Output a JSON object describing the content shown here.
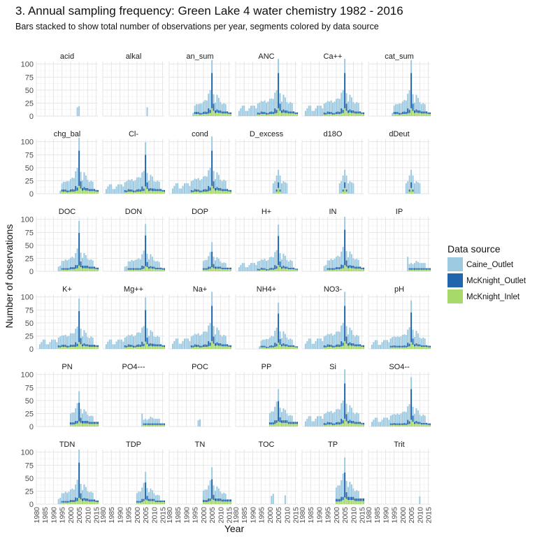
{
  "chart_data": {
    "type": "bar",
    "layout": "facet-grid",
    "stacked": true,
    "title": "3. Annual sampling frequency: Green Lake 4 water chemistry 1982 - 2016",
    "subtitle": "Bars stacked to show total number of observations per year, segments colored by data source",
    "xlabel": "Year",
    "ylabel": "Number of observations",
    "xlim": [
      1980,
      2016
    ],
    "ylim": [
      0,
      105
    ],
    "xticks": [
      1980,
      1985,
      1990,
      1995,
      2000,
      2005,
      2010,
      2015
    ],
    "yticks": [
      0,
      25,
      50,
      75,
      100
    ],
    "grid": true,
    "legend": {
      "title": "Data source",
      "position": "right",
      "entries": [
        {
          "name": "Caine_Outlet",
          "color": "#9ecae1"
        },
        {
          "name": "McKnight_Outlet",
          "color": "#2166ac"
        },
        {
          "name": "McKnight_Inlet",
          "color": "#a6d96a"
        }
      ]
    },
    "panel_columns": 6,
    "profiles": {
      "full": {
        "Caine_Outlet": {
          "1982": 10,
          "1983": 15,
          "1984": 20,
          "1985": 20,
          "1986": 10,
          "1987": 10,
          "1988": 15,
          "1989": 20,
          "1990": 20,
          "1991": 20,
          "1992": 15,
          "1993": 17,
          "1994": 20,
          "1995": 20,
          "1996": 20,
          "1997": 22,
          "1998": 20,
          "1999": 22,
          "2000": 25,
          "2001": 25,
          "2002": 25,
          "2003": 30,
          "2004": 38,
          "2005": 27,
          "2006": 20,
          "2007": 17,
          "2008": 28,
          "2009": 25,
          "2010": 16,
          "2011": 15,
          "2012": 18,
          "2013": 16
        },
        "McKnight_Outlet": {
          "1993": 4,
          "1994": 3,
          "1995": 5,
          "1996": 4,
          "1997": 4,
          "1998": 3,
          "1999": 3,
          "2000": 4,
          "2001": 5,
          "2002": 4,
          "2003": 10,
          "2004": 6,
          "2005": 68,
          "2006": 14,
          "2007": 5,
          "2008": 6,
          "2009": 5,
          "2010": 5,
          "2011": 4,
          "2012": 4,
          "2013": 4,
          "2014": 4,
          "2015": 3,
          "2016": 3
        },
        "McKnight_Inlet": {
          "1993": 3,
          "1994": 3,
          "1995": 4,
          "1996": 4,
          "1997": 4,
          "1998": 3,
          "1999": 3,
          "2000": 4,
          "2001": 4,
          "2002": 4,
          "2003": 5,
          "2004": 6,
          "2005": 15,
          "2006": 10,
          "2007": 6,
          "2008": 7,
          "2009": 6,
          "2010": 6,
          "2011": 5,
          "2012": 5,
          "2013": 5,
          "2014": 5,
          "2015": 4,
          "2016": 4
        }
      },
      "late": {
        "Caine_Outlet": {
          "1994": 6,
          "1995": 12,
          "1996": 15,
          "1997": 15,
          "1998": 18,
          "1999": 18,
          "2000": 20,
          "2001": 22,
          "2002": 22,
          "2003": 28,
          "2004": 38,
          "2005": 25,
          "2006": 18,
          "2007": 15,
          "2008": 28,
          "2009": 24,
          "2010": 16,
          "2011": 14,
          "2012": 16,
          "2013": 14
        },
        "McKnight_Outlet": {
          "1995": 4,
          "1996": 4,
          "1997": 4,
          "1998": 3,
          "1999": 3,
          "2000": 4,
          "2001": 5,
          "2002": 4,
          "2003": 10,
          "2004": 6,
          "2005": 68,
          "2006": 14,
          "2007": 5,
          "2008": 6,
          "2009": 5,
          "2010": 5,
          "2011": 4,
          "2012": 4,
          "2013": 4,
          "2014": 4,
          "2015": 3,
          "2016": 3
        },
        "McKnight_Inlet": {
          "1995": 4,
          "1996": 4,
          "1997": 4,
          "1998": 3,
          "1999": 3,
          "2000": 4,
          "2001": 4,
          "2002": 4,
          "2003": 5,
          "2004": 6,
          "2005": 15,
          "2006": 10,
          "2007": 6,
          "2008": 7,
          "2009": 6,
          "2010": 6,
          "2011": 5,
          "2012": 5,
          "2013": 5,
          "2014": 5,
          "2015": 4,
          "2016": 4
        }
      },
      "nutrient": {
        "Caine_Outlet": {
          "1993": 10,
          "1994": 12,
          "1995": 15,
          "1996": 15,
          "1997": 18,
          "1998": 16,
          "1999": 18,
          "2000": 20,
          "2001": 22,
          "2002": 20,
          "2003": 25,
          "2004": 35,
          "2005": 25,
          "2006": 18,
          "2007": 16,
          "2008": 26,
          "2009": 22,
          "2010": 14,
          "2011": 14,
          "2012": 15,
          "2013": 13
        },
        "McKnight_Outlet": {
          "1995": 3,
          "1996": 3,
          "1997": 3,
          "1998": 3,
          "1999": 3,
          "2000": 4,
          "2001": 4,
          "2002": 4,
          "2003": 8,
          "2004": 6,
          "2005": 68,
          "2006": 12,
          "2007": 5,
          "2008": 5,
          "2009": 5,
          "2010": 5,
          "2011": 4,
          "2012": 4,
          "2013": 4,
          "2014": 4,
          "2015": 3,
          "2016": 3
        },
        "McKnight_Inlet": {
          "1995": 3,
          "1996": 3,
          "1997": 3,
          "1998": 3,
          "1999": 3,
          "2000": 4,
          "2001": 4,
          "2002": 4,
          "2003": 5,
          "2004": 6,
          "2005": 12,
          "2006": 9,
          "2007": 6,
          "2008": 7,
          "2009": 6,
          "2010": 6,
          "2011": 5,
          "2012": 5,
          "2013": 5,
          "2014": 5,
          "2015": 4,
          "2016": 4
        }
      },
      "phos": {
        "Caine_Outlet": {
          "2000": 14,
          "2001": 16,
          "2002": 16,
          "2003": 20,
          "2004": 28,
          "2005": 18,
          "2006": 14,
          "2007": 12,
          "2008": 18,
          "2009": 15,
          "2010": 10,
          "2011": 9,
          "2012": 10,
          "2013": 9
        },
        "McKnight_Outlet": {
          "2000": 3,
          "2001": 3,
          "2002": 3,
          "2003": 5,
          "2004": 4,
          "2005": 30,
          "2006": 8,
          "2007": 4,
          "2008": 4,
          "2009": 4,
          "2010": 4,
          "2011": 3,
          "2012": 3,
          "2013": 3,
          "2014": 3,
          "2015": 3,
          "2016": 3
        },
        "McKnight_Inlet": {
          "2000": 3,
          "2001": 3,
          "2002": 3,
          "2003": 4,
          "2004": 5,
          "2005": 8,
          "2006": 6,
          "2007": 5,
          "2008": 5,
          "2009": 5,
          "2010": 5,
          "2011": 4,
          "2012": 4,
          "2013": 4,
          "2014": 4,
          "2015": 4,
          "2016": 4
        }
      },
      "ip": {
        "Caine_Outlet": {
          "2003": 28,
          "2004": 8,
          "2005": 10,
          "2006": 8,
          "2007": 10,
          "2008": 14,
          "2009": 12,
          "2010": 10,
          "2011": 10,
          "2012": 10,
          "2013": 10
        },
        "McKnight_Outlet": {
          "2004": 3,
          "2005": 3,
          "2006": 3,
          "2007": 3,
          "2008": 3,
          "2009": 3,
          "2010": 3,
          "2011": 3,
          "2012": 3,
          "2013": 3,
          "2014": 3,
          "2015": 3,
          "2016": 3
        },
        "McKnight_Inlet": {
          "2004": 3,
          "2005": 3,
          "2006": 3,
          "2007": 3,
          "2008": 3,
          "2009": 3,
          "2010": 3,
          "2011": 3,
          "2012": 3,
          "2013": 3,
          "2014": 3,
          "2015": 3,
          "2016": 3
        }
      },
      "isotope": {
        "Caine_Outlet": {
          "2002": 15,
          "2003": 18,
          "2004": 20,
          "2005": 18,
          "2006": 20,
          "2007": 15,
          "2008": 18,
          "2009": 16,
          "2010": 15
        },
        "McKnight_Outlet": {
          "2004": 3,
          "2005": 8,
          "2006": 3
        },
        "McKnight_Inlet": {
          "2004": 3,
          "2005": 8,
          "2006": 3
        }
      }
    },
    "panels": [
      {
        "name": "acid",
        "profile": null,
        "scale": 1,
        "extra": {
          "Caine_Outlet": {
            "2004": 17,
            "2005": 19
          }
        }
      },
      {
        "name": "alkal",
        "profile": null,
        "scale": 1,
        "extra": {
          "Caine_Outlet": {
            "2006": 17
          }
        }
      },
      {
        "name": "an_sum",
        "profile": "late",
        "scale": 1
      },
      {
        "name": "ANC",
        "profile": "full",
        "scale": 1
      },
      {
        "name": "Ca++",
        "profile": "full",
        "scale": 1
      },
      {
        "name": "cat_sum",
        "profile": "late",
        "scale": 1
      },
      {
        "name": "chg_bal",
        "profile": "late",
        "scale": 1
      },
      {
        "name": "Cl-",
        "profile": "full",
        "scale": 0.9
      },
      {
        "name": "cond",
        "profile": "full",
        "scale": 1
      },
      {
        "name": "D_excess",
        "profile": "isotope",
        "scale": 1.35
      },
      {
        "name": "d18O",
        "profile": "isotope",
        "scale": 1.35
      },
      {
        "name": "dDeut",
        "profile": "isotope",
        "scale": 1.35
      },
      {
        "name": "DOC",
        "profile": "nutrient",
        "scale": 0.92
      },
      {
        "name": "DON",
        "profile": "nutrient",
        "scale": 0.87
      },
      {
        "name": "DOP",
        "profile": "phos",
        "scale": 1
      },
      {
        "name": "H+",
        "profile": "full",
        "scale": 0.82
      },
      {
        "name": "IN",
        "profile": "nutrient",
        "scale": 1
      },
      {
        "name": "IP",
        "profile": "ip",
        "scale": 1
      },
      {
        "name": "K+",
        "profile": "full",
        "scale": 0.88
      },
      {
        "name": "Mg++",
        "profile": "full",
        "scale": 0.9
      },
      {
        "name": "Na+",
        "profile": "full",
        "scale": 1
      },
      {
        "name": "NH4+",
        "profile": "late",
        "scale": 0.82
      },
      {
        "name": "NO3-",
        "profile": "full",
        "scale": 1
      },
      {
        "name": "pH",
        "profile": "full",
        "scale": 0.84
      },
      {
        "name": "PN",
        "profile": "phos",
        "scale": 1.2
      },
      {
        "name": "PO4---",
        "profile": "ip",
        "scale": 0.9
      },
      {
        "name": "POC",
        "profile": null,
        "scale": 1,
        "extra": {
          "Caine_Outlet": {
            "1997": 12,
            "1998": 14
          }
        }
      },
      {
        "name": "PP",
        "profile": "phos",
        "scale": 1.3
      },
      {
        "name": "Si",
        "profile": "full",
        "scale": 1
      },
      {
        "name": "SO4--",
        "profile": "full",
        "scale": 0.87
      },
      {
        "name": "TDN",
        "profile": "nutrient",
        "scale": 1
      },
      {
        "name": "TDP",
        "profile": "phos",
        "scale": 1.1
      },
      {
        "name": "TN",
        "profile": "phos",
        "scale": 1.25
      },
      {
        "name": "TOC",
        "profile": null,
        "scale": 1,
        "extra": {
          "Caine_Outlet": {
            "2001": 16,
            "2002": 20,
            "2009": 17
          }
        }
      },
      {
        "name": "TP",
        "profile": "phos",
        "scale": 1.6
      },
      {
        "name": "Trit",
        "profile": null,
        "scale": 1,
        "extra": {
          "Caine_Outlet": {
            "2010": 15
          }
        }
      }
    ]
  }
}
